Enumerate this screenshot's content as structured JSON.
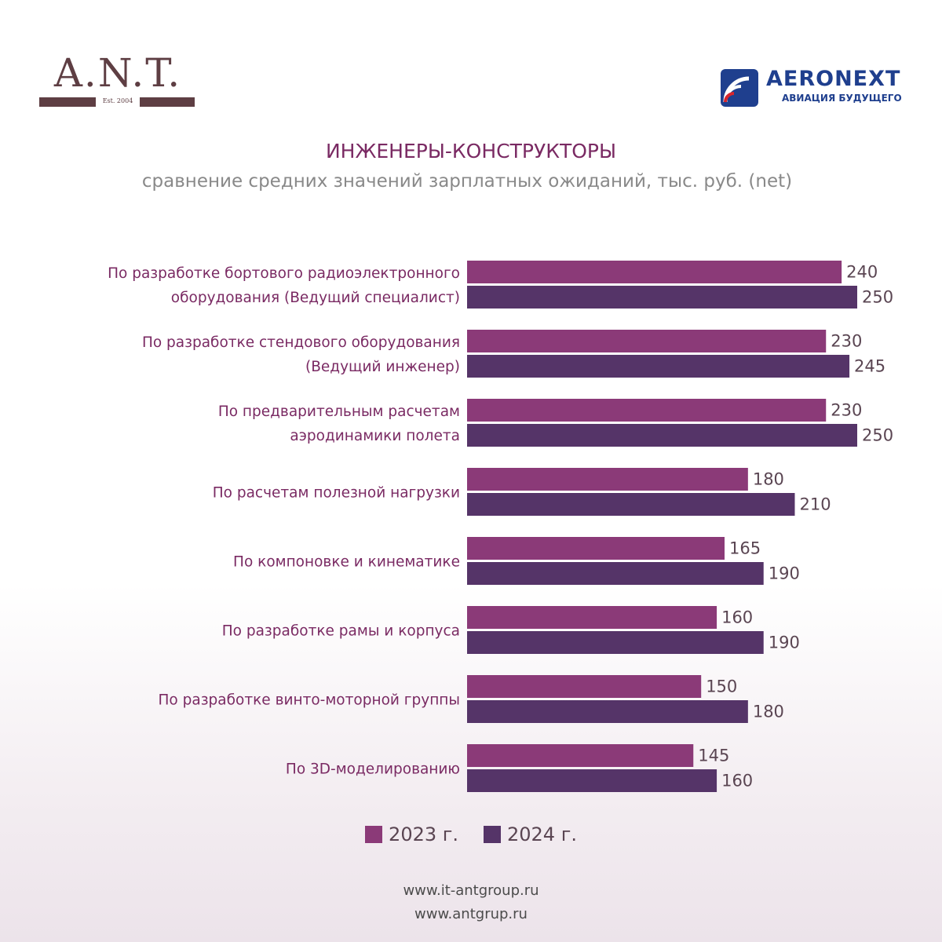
{
  "branding": {
    "ant_name": "A.N.T.",
    "ant_est": "Est. 2004",
    "aero_name": "AERONEXT",
    "aero_tagline": "АВИАЦИЯ БУДУЩЕГО",
    "ant_color": "#5e3e43",
    "aero_color": "#1f3f8e"
  },
  "title": "ИНЖЕНЕРЫ-КОНСТРУКТОРЫ",
  "subtitle": "сравнение средних значений зарплатных ожиданий, тыс. руб. (net)",
  "chart_data": {
    "type": "bar",
    "orientation": "horizontal",
    "categories": [
      [
        "По разработке бортового радиоэлектронного",
        "оборудования (Ведущий специалист)"
      ],
      [
        "По разработке стендового оборудования",
        "(Ведущий инженер)"
      ],
      [
        "По предварительным расчетам",
        "аэродинамики полета"
      ],
      [
        "По расчетам полезной нагрузки"
      ],
      [
        "По компоновке и кинематике"
      ],
      [
        "По разработке рамы и корпуса"
      ],
      [
        "По разработке винто-моторной группы"
      ],
      [
        "По 3D-моделированию"
      ]
    ],
    "series": [
      {
        "name": "2023 г.",
        "color": "#8b3a78",
        "values": [
          240,
          230,
          230,
          180,
          165,
          160,
          150,
          145
        ]
      },
      {
        "name": "2024 г.",
        "color": "#553468",
        "values": [
          250,
          245,
          250,
          210,
          190,
          190,
          180,
          160
        ]
      }
    ],
    "xlim": [
      0,
      250
    ],
    "grid": false,
    "legend_position": "bottom"
  },
  "footer": {
    "url1": "www.it-antgroup.ru",
    "url2": "www.antgrup.ru"
  }
}
